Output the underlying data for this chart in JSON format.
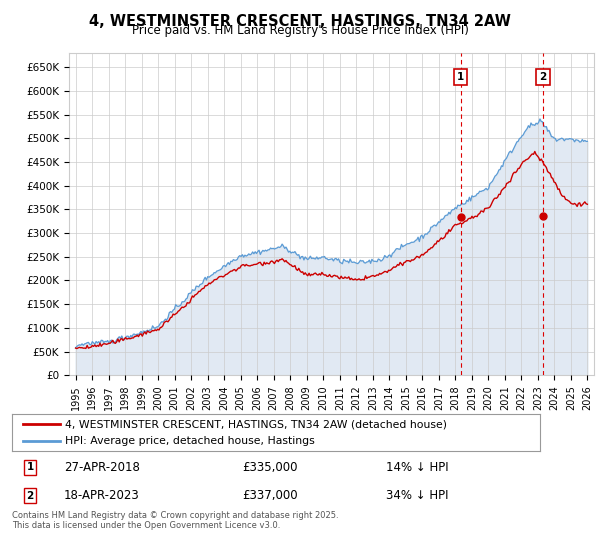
{
  "title": "4, WESTMINSTER CRESCENT, HASTINGS, TN34 2AW",
  "subtitle": "Price paid vs. HM Land Registry's House Price Index (HPI)",
  "ytick_labels": [
    "£0",
    "£50K",
    "£100K",
    "£150K",
    "£200K",
    "£250K",
    "£300K",
    "£350K",
    "£400K",
    "£450K",
    "£500K",
    "£550K",
    "£600K",
    "£650K"
  ],
  "yticks": [
    0,
    50000,
    100000,
    150000,
    200000,
    250000,
    300000,
    350000,
    400000,
    450000,
    500000,
    550000,
    600000,
    650000
  ],
  "xlim_start": 1994.6,
  "xlim_end": 2026.4,
  "ylim": [
    0,
    680000
  ],
  "hpi_color": "#5b9bd5",
  "price_color": "#cc0000",
  "marker1_x": 2018.32,
  "marker1_y": 335000,
  "marker2_x": 2023.3,
  "marker2_y": 337000,
  "marker1_label": "1",
  "marker2_label": "2",
  "annotation1": "27-APR-2018",
  "annotation1_price": "£335,000",
  "annotation1_hpi": "14% ↓ HPI",
  "annotation2": "18-APR-2023",
  "annotation2_price": "£337,000",
  "annotation2_hpi": "34% ↓ HPI",
  "legend_line1": "4, WESTMINSTER CRESCENT, HASTINGS, TN34 2AW (detached house)",
  "legend_line2": "HPI: Average price, detached house, Hastings",
  "footer": "Contains HM Land Registry data © Crown copyright and database right 2025.\nThis data is licensed under the Open Government Licence v3.0.",
  "grid_color": "#cccccc",
  "fill_color": "#dce6f1",
  "plot_bg": "#ffffff",
  "dashed_color": "#dd0000",
  "xticks": [
    1995,
    1996,
    1997,
    1998,
    1999,
    2000,
    2001,
    2002,
    2003,
    2004,
    2005,
    2006,
    2007,
    2008,
    2009,
    2010,
    2011,
    2012,
    2013,
    2014,
    2015,
    2016,
    2017,
    2018,
    2019,
    2020,
    2021,
    2022,
    2023,
    2024,
    2025,
    2026
  ]
}
